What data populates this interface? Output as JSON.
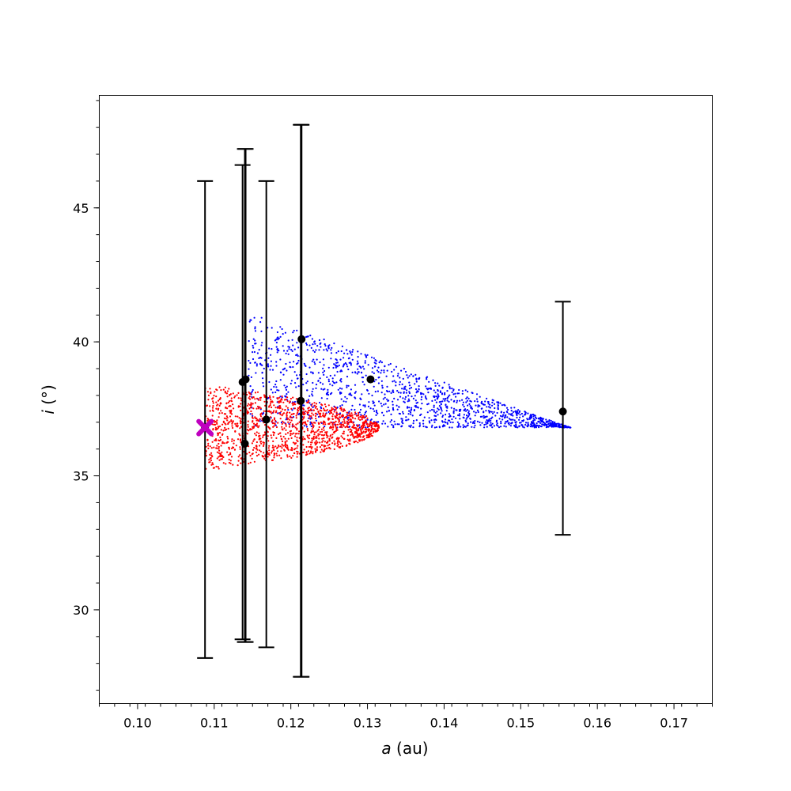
{
  "chart_data": {
    "type": "scatter",
    "xlabel": "a (au)",
    "ylabel": "i (°)",
    "xlim": [
      0.095,
      0.175
    ],
    "ylim": [
      26.5,
      49.2
    ],
    "x_ticks": [
      {
        "value": 0.1,
        "label": "0.10"
      },
      {
        "value": 0.11,
        "label": "0.11"
      },
      {
        "value": 0.12,
        "label": "0.12"
      },
      {
        "value": 0.13,
        "label": "0.13"
      },
      {
        "value": 0.14,
        "label": "0.14"
      },
      {
        "value": 0.15,
        "label": "0.15"
      },
      {
        "value": 0.16,
        "label": "0.16"
      },
      {
        "value": 0.17,
        "label": "0.17"
      }
    ],
    "y_ticks": [
      {
        "value": 30,
        "label": "30"
      },
      {
        "value": 35,
        "label": "35"
      },
      {
        "value": 40,
        "label": "40"
      },
      {
        "value": 45,
        "label": "45"
      }
    ],
    "grid": false,
    "colors": {
      "region_upper": "#0000ff",
      "region_lower": "#ff0000",
      "measurements": "#000000",
      "reference_marker": "#bf00bf"
    },
    "regions": [
      {
        "color_key": "region_upper",
        "a_range": [
          0.1145,
          0.1565
        ],
        "i_bottom": 36.8,
        "i_top_start": 41.1,
        "i_top_end": 36.8,
        "point_count": 1400
      },
      {
        "color_key": "region_lower",
        "a_range": [
          0.1088,
          0.1315
        ],
        "i_center": 36.8,
        "i_halfwidth_start": 1.6,
        "point_count": 1400
      }
    ],
    "measurements": [
      {
        "a": 0.1088,
        "i": 36.8,
        "i_low": 28.2,
        "i_high": 46.0
      },
      {
        "a": 0.1137,
        "i": 38.5,
        "i_low": 28.9,
        "i_high": 46.6
      },
      {
        "a": 0.114,
        "i": 36.2,
        "i_low": 28.8,
        "i_high": 47.2
      },
      {
        "a": 0.1141,
        "i": 38.6,
        "i_low": 28.8,
        "i_high": 47.2
      },
      {
        "a": 0.1168,
        "i": 37.1,
        "i_low": 28.6,
        "i_high": 46.0
      },
      {
        "a": 0.1214,
        "i": 40.1,
        "i_low": 27.5,
        "i_high": 48.1
      },
      {
        "a": 0.1213,
        "i": 37.8,
        "i_low": 27.5,
        "i_high": 48.1
      },
      {
        "a": 0.1304,
        "i": 38.6,
        "i_low": 38.6,
        "i_high": 38.6
      },
      {
        "a": 0.1555,
        "i": 37.4,
        "i_low": 32.8,
        "i_high": 41.5
      }
    ],
    "reference_point": {
      "a": 0.1088,
      "i": 36.8
    }
  }
}
